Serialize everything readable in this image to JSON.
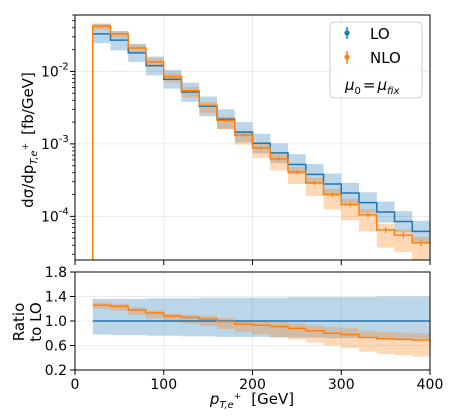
{
  "colors": {
    "lo": "#1f77b4",
    "nlo": "#ff7f0e",
    "lo_band": "#1f77b4",
    "nlo_band": "#ff7f0e"
  },
  "chart_data": [
    {
      "type": "line",
      "panel": "main",
      "ylabel_parts": {
        "main": "dσ/dp",
        "sub": "T,e",
        "sup": "+",
        "tail": "[fb/GeV]"
      },
      "yscale": "log",
      "ylim": [
        2.5e-05,
        0.06
      ],
      "xlim": [
        0,
        400
      ],
      "y_ticks": [
        {
          "value": 0.01,
          "label_base": "10",
          "label_exp": "-2"
        },
        {
          "value": 0.001,
          "label_base": "10",
          "label_exp": "-3"
        },
        {
          "value": 0.0001,
          "label_base": "10",
          "label_exp": "-4"
        }
      ],
      "grid": true,
      "legend_placement": "top-right",
      "bin_edges": [
        20,
        40,
        60,
        80,
        100,
        120,
        140,
        160,
        180,
        200,
        220,
        240,
        260,
        280,
        300,
        320,
        340,
        360,
        380,
        400
      ],
      "series": [
        {
          "name": "LO",
          "color_key": "lo",
          "values": [
            0.033,
            0.027,
            0.018,
            0.012,
            0.0078,
            0.0052,
            0.0033,
            0.0022,
            0.00145,
            0.00102,
            0.00075,
            0.00052,
            0.00038,
            0.00028,
            0.00021,
            0.000155,
            0.000115,
            8.5e-05,
            6.2e-05
          ],
          "band_low": [
            0.0245,
            0.0195,
            0.0135,
            0.0088,
            0.0058,
            0.0038,
            0.0024,
            0.0016,
            0.00105,
            0.00074,
            0.00054,
            0.00038,
            0.00028,
            0.0002,
            0.00015,
            0.00011,
            8.2e-05,
            6e-05,
            4.4e-05
          ],
          "band_high": [
            0.045,
            0.036,
            0.024,
            0.016,
            0.0105,
            0.007,
            0.0045,
            0.003,
            0.002,
            0.00138,
            0.00102,
            0.00072,
            0.00053,
            0.00039,
            0.00029,
            0.000215,
            0.00016,
            0.000118,
            8.7e-05
          ]
        },
        {
          "name": "NLO",
          "color_key": "nlo",
          "values": [
            0.042,
            0.033,
            0.021,
            0.0135,
            0.0085,
            0.0054,
            0.0034,
            0.0021,
            0.00132,
            0.00088,
            0.00062,
            0.00041,
            0.00029,
            0.0002,
            0.000146,
            0.000105,
            6.5e-05,
            5.5e-05,
            4.3e-05
          ],
          "band_low": [
            0.038,
            0.029,
            0.0182,
            0.0115,
            0.0071,
            0.0044,
            0.00265,
            0.0016,
            0.00098,
            0.00064,
            0.00043,
            0.00028,
            0.00019,
            0.000125,
            8.8e-05,
            6.2e-05,
            3.7e-05,
            3.2e-05,
            2.5e-05
          ],
          "band_high": [
            0.046,
            0.036,
            0.0235,
            0.0152,
            0.0096,
            0.0061,
            0.0038,
            0.0024,
            0.00152,
            0.00102,
            0.00072,
            0.00048,
            0.00034,
            0.00024,
            0.000175,
            0.000126,
            7.9e-05,
            6.6e-05,
            5.2e-05
          ],
          "err_low": [
            0.041,
            0.0322,
            0.0205,
            0.0131,
            0.0082,
            0.0052,
            0.00325,
            0.002,
            0.00125,
            0.00083,
            0.00058,
            0.000385,
            0.000272,
            0.000186,
            0.000136,
            9.7e-05,
            5.9e-05,
            5e-05,
            3.9e-05
          ],
          "err_high": [
            0.043,
            0.0338,
            0.0215,
            0.0139,
            0.0088,
            0.0056,
            0.00355,
            0.0022,
            0.00139,
            0.00093,
            0.00066,
            0.000435,
            0.000308,
            0.000214,
            0.000156,
            0.000113,
            7.1e-05,
            6e-05,
            4.7e-05
          ]
        }
      ],
      "legend": {
        "entries": [
          {
            "label": "LO",
            "color_key": "lo"
          },
          {
            "label": "NLO",
            "color_key": "nlo"
          }
        ],
        "note": {
          "main": "μ",
          "sub0": "0",
          "eq": "=",
          "main2": "μ",
          "sub2": "fix"
        }
      }
    },
    {
      "type": "line",
      "panel": "ratio",
      "ylabel_line1": "Ratio",
      "ylabel_line2": "to LO",
      "xlabel_parts": {
        "main": "p",
        "sub": "T,e",
        "sup": "+",
        "tail": "[GeV]"
      },
      "xlim": [
        0,
        400
      ],
      "ylim": [
        0.2,
        1.8
      ],
      "x_ticks": [
        {
          "value": 0,
          "label": "0"
        },
        {
          "value": 100,
          "label": "100"
        },
        {
          "value": 200,
          "label": "200"
        },
        {
          "value": 300,
          "label": "300"
        },
        {
          "value": 400,
          "label": "400"
        }
      ],
      "y_ticks": [
        {
          "value": 0.2,
          "label": "0.2"
        },
        {
          "value": 0.6,
          "label": "0.6"
        },
        {
          "value": 1.0,
          "label": "1.0"
        },
        {
          "value": 1.4,
          "label": "1.4"
        },
        {
          "value": 1.8,
          "label": "1.8"
        }
      ],
      "grid": true,
      "bin_edges": [
        20,
        40,
        60,
        80,
        100,
        120,
        140,
        160,
        180,
        200,
        220,
        240,
        260,
        280,
        300,
        320,
        340,
        360,
        380,
        400
      ],
      "series": [
        {
          "name": "LO",
          "color_key": "lo",
          "values": [
            1.0,
            1.0,
            1.0,
            1.0,
            1.0,
            1.0,
            1.0,
            1.0,
            1.0,
            1.0,
            1.0,
            1.0,
            1.0,
            1.0,
            1.0,
            1.0,
            1.0,
            1.0,
            1.0
          ],
          "band_low": [
            0.78,
            0.77,
            0.77,
            0.76,
            0.76,
            0.75,
            0.75,
            0.74,
            0.74,
            0.74,
            0.73,
            0.73,
            0.73,
            0.72,
            0.72,
            0.72,
            0.71,
            0.71,
            0.71
          ],
          "band_high": [
            1.36,
            1.36,
            1.36,
            1.37,
            1.37,
            1.37,
            1.38,
            1.38,
            1.38,
            1.38,
            1.38,
            1.39,
            1.39,
            1.39,
            1.39,
            1.39,
            1.4,
            1.4,
            1.4
          ]
        },
        {
          "name": "NLO",
          "color_key": "nlo",
          "values": [
            1.26,
            1.24,
            1.18,
            1.13,
            1.08,
            1.06,
            1.03,
            0.99,
            0.95,
            0.93,
            0.91,
            0.88,
            0.84,
            0.8,
            0.78,
            0.73,
            0.71,
            0.7,
            0.69
          ],
          "band_low": [
            1.2,
            1.17,
            1.1,
            1.04,
            0.99,
            0.96,
            0.92,
            0.87,
            0.82,
            0.78,
            0.74,
            0.7,
            0.65,
            0.6,
            0.56,
            0.5,
            0.46,
            0.44,
            0.42
          ],
          "band_high": [
            1.3,
            1.28,
            1.22,
            1.17,
            1.12,
            1.1,
            1.08,
            1.05,
            1.02,
            1.0,
            0.98,
            0.96,
            0.93,
            0.9,
            0.88,
            0.84,
            0.82,
            0.81,
            0.8
          ]
        }
      ]
    }
  ]
}
